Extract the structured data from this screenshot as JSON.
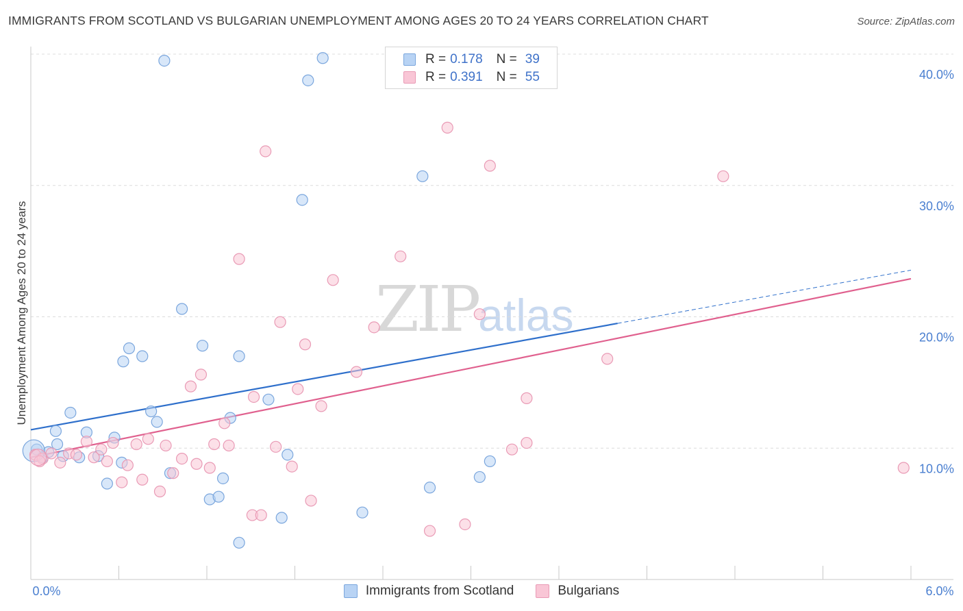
{
  "chart_data": {
    "type": "scatter",
    "title": "IMMIGRANTS FROM SCOTLAND VS BULGARIAN UNEMPLOYMENT AMONG AGES 20 TO 24 YEARS CORRELATION CHART",
    "source": "Source: ZipAtlas.com",
    "xlabel": "",
    "ylabel": "Unemployment Among Ages 20 to 24 years",
    "xlim": [
      0,
      6
    ],
    "ylim": [
      0,
      40
    ],
    "x_tick_labels": [
      "0.0%",
      "6.0%"
    ],
    "y_ticks": [
      10,
      20,
      30,
      40
    ],
    "y_tick_labels": [
      "10.0%",
      "20.0%",
      "30.0%",
      "40.0%"
    ],
    "watermark": {
      "zip": "ZIP",
      "atlas": "atlas"
    },
    "legend": {
      "r_label": "R =",
      "n_label": "N =",
      "entries": [
        {
          "name": "Immigrants from Scotland",
          "r": "0.178",
          "n": "39"
        },
        {
          "name": "Bulgarians",
          "r": "0.391",
          "n": "55"
        }
      ]
    },
    "colors": {
      "scotland_fill": "#b8d3f4",
      "scotland_stroke": "#7aa6dd",
      "scotland_line": "#2e6fcb",
      "bulgarian_fill": "#f9c6d6",
      "bulgarian_stroke": "#e99ab5",
      "bulgarian_line": "#e0608e"
    },
    "series": [
      {
        "name": "Immigrants from Scotland",
        "trend": {
          "x0": 0,
          "y0": 11.4,
          "x1": 4.0,
          "y1": 19.5,
          "dash_to_x": 6.0
        },
        "points": [
          [
            0.04,
            9.9
          ],
          [
            0.08,
            9.3
          ],
          [
            0.18,
            10.3
          ],
          [
            0.27,
            12.7
          ],
          [
            0.38,
            11.2
          ],
          [
            0.17,
            11.3
          ],
          [
            0.33,
            9.3
          ],
          [
            0.46,
            9.4
          ],
          [
            0.52,
            7.3
          ],
          [
            0.57,
            10.8
          ],
          [
            0.62,
            8.9
          ],
          [
            0.63,
            16.6
          ],
          [
            0.67,
            17.6
          ],
          [
            0.76,
            17.0
          ],
          [
            0.82,
            12.8
          ],
          [
            0.86,
            12.0
          ],
          [
            0.95,
            8.1
          ],
          [
            1.03,
            20.6
          ],
          [
            1.17,
            17.8
          ],
          [
            1.22,
            6.1
          ],
          [
            1.28,
            6.3
          ],
          [
            1.31,
            7.7
          ],
          [
            1.36,
            12.3
          ],
          [
            1.42,
            17.0
          ],
          [
            1.42,
            2.8
          ],
          [
            1.62,
            13.7
          ],
          [
            1.71,
            4.7
          ],
          [
            1.75,
            9.5
          ],
          [
            1.85,
            28.9
          ],
          [
            1.89,
            38.0
          ],
          [
            1.99,
            39.7
          ],
          [
            2.26,
            5.1
          ],
          [
            2.67,
            30.7
          ],
          [
            2.72,
            7.0
          ],
          [
            3.06,
            7.8
          ],
          [
            3.13,
            9.0
          ],
          [
            0.91,
            39.5
          ],
          [
            0.22,
            9.4
          ],
          [
            0.12,
            9.7
          ]
        ]
      },
      {
        "name": "Bulgarians",
        "trend": {
          "x0": 0,
          "y0": 9.3,
          "x1": 6.0,
          "y1": 22.9
        },
        "points": [
          [
            0.03,
            9.5
          ],
          [
            0.08,
            9.2
          ],
          [
            0.14,
            9.6
          ],
          [
            0.2,
            8.9
          ],
          [
            0.26,
            9.6
          ],
          [
            0.31,
            9.5
          ],
          [
            0.38,
            10.5
          ],
          [
            0.43,
            9.3
          ],
          [
            0.48,
            9.9
          ],
          [
            0.52,
            9.0
          ],
          [
            0.56,
            10.4
          ],
          [
            0.62,
            7.4
          ],
          [
            0.66,
            8.7
          ],
          [
            0.72,
            10.3
          ],
          [
            0.76,
            7.6
          ],
          [
            0.8,
            10.7
          ],
          [
            0.88,
            6.7
          ],
          [
            0.92,
            10.2
          ],
          [
            0.97,
            8.1
          ],
          [
            1.03,
            9.2
          ],
          [
            1.09,
            14.7
          ],
          [
            1.13,
            8.8
          ],
          [
            1.16,
            15.6
          ],
          [
            1.22,
            8.5
          ],
          [
            1.25,
            10.3
          ],
          [
            1.32,
            11.9
          ],
          [
            1.35,
            10.2
          ],
          [
            1.42,
            24.4
          ],
          [
            1.51,
            4.9
          ],
          [
            1.52,
            13.9
          ],
          [
            1.57,
            4.9
          ],
          [
            1.6,
            32.6
          ],
          [
            1.67,
            10.1
          ],
          [
            1.7,
            19.6
          ],
          [
            1.78,
            8.6
          ],
          [
            1.82,
            14.5
          ],
          [
            1.87,
            17.9
          ],
          [
            1.91,
            6.0
          ],
          [
            1.98,
            13.2
          ],
          [
            2.06,
            22.8
          ],
          [
            2.22,
            15.8
          ],
          [
            2.34,
            19.2
          ],
          [
            2.52,
            24.6
          ],
          [
            2.72,
            3.7
          ],
          [
            2.84,
            34.4
          ],
          [
            2.96,
            4.2
          ],
          [
            3.06,
            20.2
          ],
          [
            3.13,
            31.5
          ],
          [
            3.28,
            9.9
          ],
          [
            3.38,
            13.8
          ],
          [
            3.38,
            10.4
          ],
          [
            3.93,
            16.8
          ],
          [
            4.72,
            30.7
          ],
          [
            5.95,
            8.5
          ],
          [
            0.06,
            9.0
          ]
        ]
      }
    ]
  }
}
